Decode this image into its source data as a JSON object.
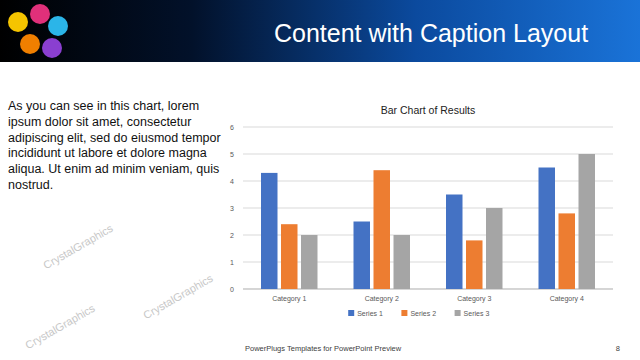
{
  "slide": {
    "title": "Content with Caption Layout",
    "caption": "As you can see in this chart, lorem ipsum dolor sit amet, consectetur adipiscing elit, sed do eiusmod tempor incididunt ut labore et dolore magna aliqua. Ut enim ad minim veniam, quis nostrud.",
    "footer": "PowerPlugs Templates for PowerPoint Preview",
    "page": 8,
    "watermark": "CrystalGraphics"
  },
  "chart_data": {
    "type": "bar",
    "title": "Bar Chart of Results",
    "categories": [
      "Category 1",
      "Category 2",
      "Category 3",
      "Category 4"
    ],
    "series": [
      {
        "name": "Series 1",
        "color": "#4472c4",
        "values": [
          4.3,
          2.5,
          3.5,
          4.5
        ]
      },
      {
        "name": "Series 2",
        "color": "#ed7d31",
        "values": [
          2.4,
          4.4,
          1.8,
          2.8
        ]
      },
      {
        "name": "Series 3",
        "color": "#a5a5a5",
        "values": [
          2,
          2,
          3,
          5
        ]
      }
    ],
    "ylim": [
      0,
      6
    ],
    "yticks": [
      0,
      1,
      2,
      3,
      4,
      5,
      6
    ],
    "grid": true,
    "legend": "bottom"
  }
}
